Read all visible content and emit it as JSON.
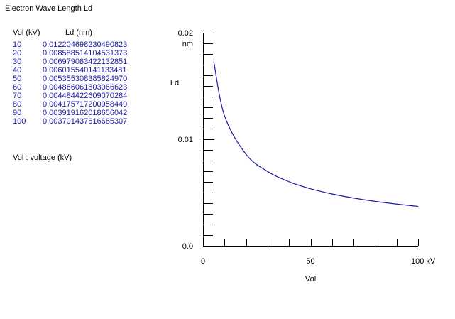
{
  "title": "Electron Wave Length   Ld",
  "table": {
    "header_vol": "Vol (kV)",
    "header_ld": "Ld  (nm)",
    "rows": [
      {
        "vol": "10",
        "ld": "0.012204698230490823"
      },
      {
        "vol": "20",
        "ld": "0.008588514104531373"
      },
      {
        "vol": "30",
        "ld": "0.006979083422132851"
      },
      {
        "vol": "40",
        "ld": "0.006015540141133481"
      },
      {
        "vol": "50",
        "ld": "0.005355308385824970"
      },
      {
        "vol": "60",
        "ld": "0.004866061803066623"
      },
      {
        "vol": "70",
        "ld": "0.004484422609070284"
      },
      {
        "vol": "80",
        "ld": "0.004175717200958449"
      },
      {
        "vol": "90",
        "ld": "0.003919162018656042"
      },
      {
        "vol": "100",
        "ld": "0.003701437616685307"
      }
    ]
  },
  "legend_note": "Vol  :  voltage (kV)",
  "colors": {
    "curve": "#1a1aa6",
    "table_text": "#1a1aa6",
    "axis": "#000000"
  },
  "chart_data": {
    "type": "line",
    "ylabel": "Ld",
    "yunit": "nm",
    "xlabel": "Vol",
    "x_tick_labels": [
      "0",
      "50",
      "100 kV"
    ],
    "y_tick_labels": [
      "0.0",
      "0.01",
      "0.02"
    ],
    "xlim": [
      0,
      100
    ],
    "ylim": [
      0,
      0.02
    ],
    "grid": false,
    "series": [
      {
        "x": [
          5,
          10,
          20,
          30,
          40,
          50,
          60,
          70,
          80,
          90,
          100
        ],
        "y": [
          0.0173,
          0.012205,
          0.008589,
          0.006979,
          0.006016,
          0.005355,
          0.004866,
          0.004484,
          0.004176,
          0.003919,
          0.003701
        ]
      }
    ]
  }
}
